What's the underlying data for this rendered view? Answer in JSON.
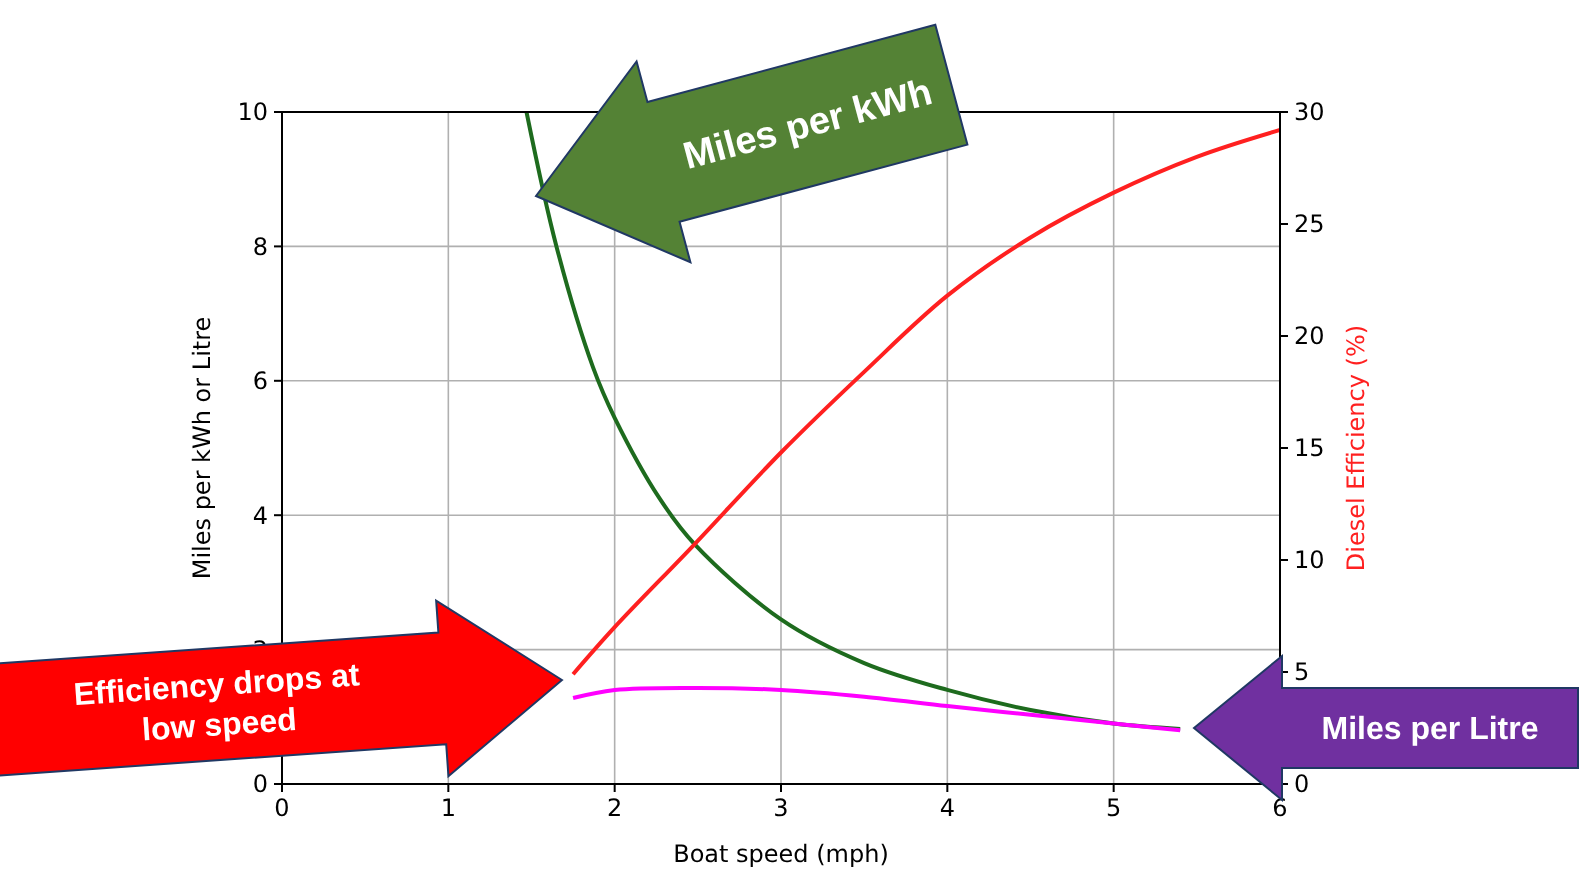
{
  "chart_data": {
    "type": "line",
    "xlabel": "Boat speed (mph)",
    "ylabel": "Miles per kWh or Litre",
    "y2label": "Diesel Efficiency (%)",
    "xlim": [
      0,
      6
    ],
    "xticks": [
      0,
      1,
      2,
      3,
      4,
      5,
      6
    ],
    "ylim": [
      0,
      10
    ],
    "yticks": [
      0,
      2,
      4,
      6,
      8,
      10
    ],
    "y2lim": [
      0,
      30
    ],
    "y2ticks": [
      0,
      5,
      10,
      15,
      20,
      25,
      30
    ],
    "grid": true,
    "series": [
      {
        "color": "#1e6b1e",
        "x": [
          1.47,
          1.65,
          1.87,
          2,
          2.27,
          2.48,
          3,
          3.5,
          4,
          4.5,
          5,
          5.4
        ],
        "values": [
          10,
          8,
          6.2,
          5.45,
          4.25,
          3.57,
          2.45,
          1.8,
          1.4,
          1.1,
          0.9,
          0.82
        ]
      },
      {
        "color": "#ff2020",
        "axis": "y2",
        "x": [
          1.75,
          2,
          2.48,
          3,
          3.5,
          4,
          4.5,
          5,
          5.5,
          6
        ],
        "values": [
          4.9,
          7,
          10.7,
          14.8,
          18.4,
          21.8,
          24.4,
          26.4,
          28,
          29.2
        ]
      },
      {
        "color": "#ff00ff",
        "x": [
          1.75,
          2,
          2.5,
          3,
          3.5,
          4,
          4.5,
          5,
          5.4
        ],
        "values": [
          1.28,
          1.4,
          1.43,
          1.4,
          1.3,
          1.16,
          1.03,
          0.9,
          0.8
        ]
      }
    ],
    "annotations": [
      "Miles per kWh",
      "Efficiency drops at low speed",
      "Miles per Litre"
    ]
  }
}
